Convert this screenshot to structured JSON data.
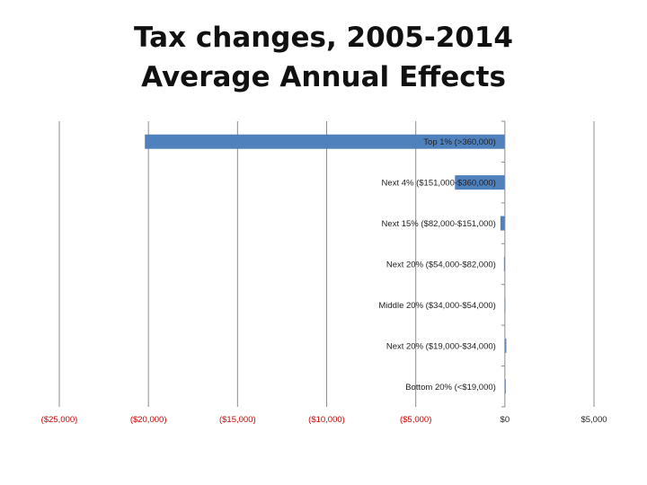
{
  "chart_data": {
    "type": "bar",
    "orientation": "horizontal",
    "title": [
      "Tax changes, 2005-2014",
      "Average Annual Effects"
    ],
    "categories": [
      "Top 1% (>360,000)",
      "Next 4% ($151,000-$360,000)",
      "Next 15% ($82,000-$151,000)",
      "Next 20% ($54,000-$82,000)",
      "Middle 20% ($34,000-$54,000)",
      "Next 20% ($19,000-$34,000)",
      "Bottom 20% (<$19,000)"
    ],
    "values": [
      -20200,
      -2800,
      -250,
      -50,
      -20,
      80,
      50
    ],
    "xlim": [
      -25000,
      5000
    ],
    "xticks": [
      -25000,
      -20000,
      -15000,
      -10000,
      -5000,
      0,
      5000
    ],
    "tick_labels": [
      "($25,000)",
      "($20,000)",
      "($15,000)",
      "($10,000)",
      "($5,000)",
      "$0",
      "$5,000"
    ],
    "bar_color": "#4f81bd",
    "negative_label_color": "#cc0000",
    "grid": true,
    "legend": "none"
  }
}
